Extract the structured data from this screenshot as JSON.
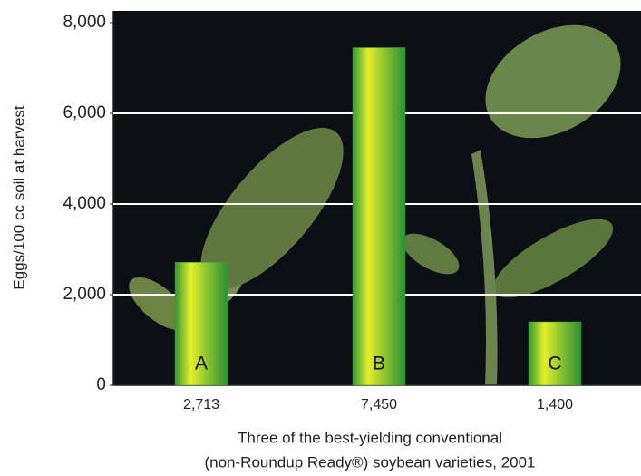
{
  "chart_data": {
    "type": "bar",
    "categories": [
      "A",
      "B",
      "C"
    ],
    "values": [
      2713,
      7450,
      1400
    ],
    "value_labels": [
      "2,713",
      "7,450",
      "1,400"
    ],
    "ylabel": "Eggs/100 cc soil at harvest",
    "xlabel": [
      "Three of the best-yielding conventional",
      "(non-Roundup Ready®) soybean varieties, 2001"
    ],
    "ylim": [
      0,
      8000
    ],
    "yticks": [
      0,
      {
        "value": 2000,
        "label": "2,000"
      },
      {
        "value": 4000,
        "label": "4,000"
      },
      {
        "value": 6000,
        "label": "6,000"
      },
      {
        "value": 8000,
        "label": "8,000"
      }
    ],
    "grid": true,
    "color": "#3a9a30"
  }
}
